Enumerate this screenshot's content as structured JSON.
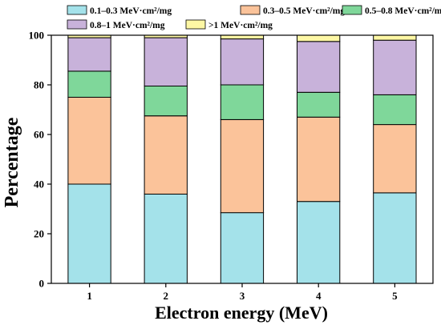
{
  "chart_data": {
    "type": "bar",
    "stacked": true,
    "xlabel": "Electron energy (MeV)",
    "ylabel": "Percentage",
    "categories": [
      "1",
      "2",
      "3",
      "4",
      "5"
    ],
    "ylim": [
      0,
      100
    ],
    "yticks": [
      0,
      20,
      40,
      60,
      80,
      100
    ],
    "grid": false,
    "legend_position": "top",
    "series": [
      {
        "name": "0.1–0.3 MeV·cm²/mg",
        "color": "#a4e2ea",
        "values": [
          40,
          36,
          28.5,
          33,
          36.5
        ]
      },
      {
        "name": "0.3–0.5 MeV·cm²/mg",
        "color": "#fbc39a",
        "values": [
          35,
          31.5,
          37.5,
          34,
          27.5
        ]
      },
      {
        "name": "0.5–0.8 MeV·cm²/mg",
        "color": "#7fd79a",
        "values": [
          10.5,
          12,
          14,
          10,
          12
        ]
      },
      {
        "name": "0.8–1 MeV·cm²/mg",
        "color": "#c8b2da",
        "values": [
          13.5,
          19.5,
          18.5,
          20.5,
          22
        ]
      },
      {
        "name": ">1 MeV·cm²/mg",
        "color": "#fdf7a4",
        "values": [
          1,
          1,
          1.5,
          2.5,
          2
        ]
      }
    ]
  }
}
